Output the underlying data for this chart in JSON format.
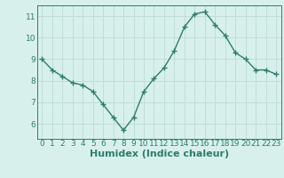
{
  "xlabel": "Humidex (Indice chaleur)",
  "ylabel": "",
  "x": [
    0,
    1,
    2,
    3,
    4,
    5,
    6,
    7,
    8,
    9,
    10,
    11,
    12,
    13,
    14,
    15,
    16,
    17,
    18,
    19,
    20,
    21,
    22,
    23
  ],
  "y": [
    9.0,
    8.5,
    8.2,
    7.9,
    7.8,
    7.5,
    6.9,
    6.3,
    5.7,
    6.3,
    7.5,
    8.1,
    8.6,
    9.4,
    10.5,
    11.1,
    11.2,
    10.6,
    10.1,
    9.3,
    9.0,
    8.5,
    8.5,
    8.3
  ],
  "line_color": "#2e7d6e",
  "marker": "+",
  "marker_size": 4,
  "marker_lw": 1.0,
  "bg_color": "#d8f0eb",
  "grid_color": "#c0ddd7",
  "axis_bg": "#d8f0eb",
  "xlim": [
    -0.5,
    23.5
  ],
  "ylim": [
    5.3,
    11.5
  ],
  "yticks": [
    6,
    7,
    8,
    9,
    10,
    11
  ],
  "xticks": [
    0,
    1,
    2,
    3,
    4,
    5,
    6,
    7,
    8,
    9,
    10,
    11,
    12,
    13,
    14,
    15,
    16,
    17,
    18,
    19,
    20,
    21,
    22,
    23
  ],
  "tick_label_fontsize": 6.5,
  "xlabel_fontsize": 8.0,
  "linewidth": 1.0
}
